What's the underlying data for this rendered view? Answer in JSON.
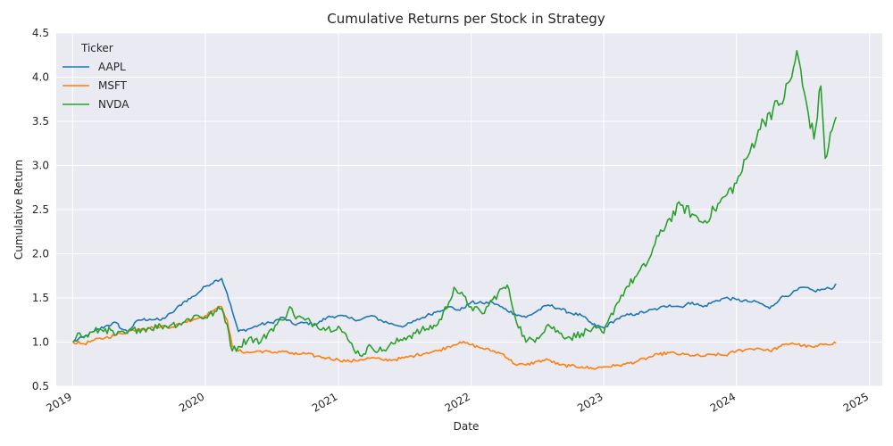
{
  "chart_data": {
    "type": "line",
    "title": "Cumulative Returns per Stock in Strategy",
    "xlabel": "Date",
    "ylabel": "Cumulative Return",
    "ylim": [
      0.5,
      4.5
    ],
    "y_ticks": [
      "0.5",
      "1.0",
      "1.5",
      "2.0",
      "2.5",
      "3.0",
      "3.5",
      "4.0",
      "4.5"
    ],
    "x_ticks": [
      "2019",
      "2020",
      "2021",
      "2022",
      "2023",
      "2024",
      "2025"
    ],
    "xlim": [
      "2018-11-17",
      "2025-02-05"
    ],
    "grid": true,
    "legend": {
      "title": "Ticker",
      "placement": "top-left"
    },
    "series": [
      {
        "name": "AAPL",
        "color": "#1f77b4",
        "points": [
          [
            "2019-01-02",
            1.0
          ],
          [
            "2019-02-01",
            1.06
          ],
          [
            "2019-03-01",
            1.12
          ],
          [
            "2019-04-01",
            1.18
          ],
          [
            "2019-05-01",
            1.22
          ],
          [
            "2019-05-15",
            1.15
          ],
          [
            "2019-06-01",
            1.12
          ],
          [
            "2019-07-01",
            1.25
          ],
          [
            "2019-08-01",
            1.26
          ],
          [
            "2019-09-01",
            1.25
          ],
          [
            "2019-10-01",
            1.33
          ],
          [
            "2019-11-01",
            1.45
          ],
          [
            "2019-12-01",
            1.52
          ],
          [
            "2020-01-01",
            1.63
          ],
          [
            "2020-02-01",
            1.7
          ],
          [
            "2020-02-15",
            1.72
          ],
          [
            "2020-03-01",
            1.55
          ],
          [
            "2020-03-15",
            1.35
          ],
          [
            "2020-04-01",
            1.12
          ],
          [
            "2020-05-01",
            1.15
          ],
          [
            "2020-06-01",
            1.2
          ],
          [
            "2020-07-01",
            1.22
          ],
          [
            "2020-08-01",
            1.28
          ],
          [
            "2020-09-01",
            1.2
          ],
          [
            "2020-10-01",
            1.22
          ],
          [
            "2020-11-01",
            1.2
          ],
          [
            "2020-12-01",
            1.28
          ],
          [
            "2021-01-01",
            1.3
          ],
          [
            "2021-02-01",
            1.27
          ],
          [
            "2021-03-01",
            1.25
          ],
          [
            "2021-04-01",
            1.3
          ],
          [
            "2021-05-01",
            1.24
          ],
          [
            "2021-06-01",
            1.2
          ],
          [
            "2021-07-01",
            1.18
          ],
          [
            "2021-08-01",
            1.24
          ],
          [
            "2021-09-01",
            1.3
          ],
          [
            "2021-10-01",
            1.35
          ],
          [
            "2021-11-01",
            1.4
          ],
          [
            "2021-12-01",
            1.36
          ],
          [
            "2022-01-01",
            1.45
          ],
          [
            "2022-02-01",
            1.44
          ],
          [
            "2022-03-01",
            1.45
          ],
          [
            "2022-04-01",
            1.38
          ],
          [
            "2022-05-01",
            1.32
          ],
          [
            "2022-06-01",
            1.28
          ],
          [
            "2022-07-01",
            1.35
          ],
          [
            "2022-08-01",
            1.42
          ],
          [
            "2022-09-01",
            1.38
          ],
          [
            "2022-10-01",
            1.33
          ],
          [
            "2022-11-01",
            1.3
          ],
          [
            "2022-12-01",
            1.2
          ],
          [
            "2023-01-01",
            1.16
          ],
          [
            "2023-02-01",
            1.25
          ],
          [
            "2023-03-01",
            1.3
          ],
          [
            "2023-04-01",
            1.32
          ],
          [
            "2023-05-01",
            1.35
          ],
          [
            "2023-06-01",
            1.38
          ],
          [
            "2023-07-01",
            1.42
          ],
          [
            "2023-08-01",
            1.4
          ],
          [
            "2023-09-01",
            1.45
          ],
          [
            "2023-10-01",
            1.4
          ],
          [
            "2023-11-01",
            1.46
          ],
          [
            "2023-12-01",
            1.5
          ],
          [
            "2024-01-01",
            1.48
          ],
          [
            "2024-02-01",
            1.46
          ],
          [
            "2024-03-01",
            1.45
          ],
          [
            "2024-04-01",
            1.38
          ],
          [
            "2024-05-01",
            1.5
          ],
          [
            "2024-06-01",
            1.55
          ],
          [
            "2024-07-01",
            1.62
          ],
          [
            "2024-08-01",
            1.58
          ],
          [
            "2024-09-01",
            1.6
          ],
          [
            "2024-09-25",
            1.62
          ],
          [
            "2024-10-01",
            1.66
          ]
        ]
      },
      {
        "name": "MSFT",
        "color": "#ff7f0e",
        "points": [
          [
            "2019-01-02",
            1.0
          ],
          [
            "2019-02-01",
            0.98
          ],
          [
            "2019-03-01",
            1.02
          ],
          [
            "2019-04-01",
            1.05
          ],
          [
            "2019-05-01",
            1.08
          ],
          [
            "2019-06-01",
            1.12
          ],
          [
            "2019-07-01",
            1.15
          ],
          [
            "2019-08-01",
            1.16
          ],
          [
            "2019-09-01",
            1.18
          ],
          [
            "2019-10-01",
            1.17
          ],
          [
            "2019-11-01",
            1.22
          ],
          [
            "2019-12-01",
            1.26
          ],
          [
            "2020-01-01",
            1.3
          ],
          [
            "2020-01-20",
            1.35
          ],
          [
            "2020-02-01",
            1.38
          ],
          [
            "2020-02-15",
            1.4
          ],
          [
            "2020-03-01",
            1.25
          ],
          [
            "2020-03-15",
            0.95
          ],
          [
            "2020-04-01",
            0.9
          ],
          [
            "2020-05-01",
            0.88
          ],
          [
            "2020-06-01",
            0.9
          ],
          [
            "2020-07-01",
            0.88
          ],
          [
            "2020-08-01",
            0.9
          ],
          [
            "2020-09-01",
            0.86
          ],
          [
            "2020-10-01",
            0.87
          ],
          [
            "2020-11-01",
            0.84
          ],
          [
            "2020-12-01",
            0.82
          ],
          [
            "2021-01-01",
            0.8
          ],
          [
            "2021-02-01",
            0.78
          ],
          [
            "2021-03-01",
            0.8
          ],
          [
            "2021-04-01",
            0.82
          ],
          [
            "2021-05-01",
            0.8
          ],
          [
            "2021-06-01",
            0.8
          ],
          [
            "2021-07-01",
            0.82
          ],
          [
            "2021-08-01",
            0.85
          ],
          [
            "2021-09-01",
            0.88
          ],
          [
            "2021-10-01",
            0.9
          ],
          [
            "2021-11-01",
            0.95
          ],
          [
            "2021-12-01",
            1.0
          ],
          [
            "2022-01-01",
            0.97
          ],
          [
            "2022-02-01",
            0.93
          ],
          [
            "2022-03-01",
            0.9
          ],
          [
            "2022-04-01",
            0.86
          ],
          [
            "2022-05-01",
            0.75
          ],
          [
            "2022-06-01",
            0.74
          ],
          [
            "2022-07-01",
            0.78
          ],
          [
            "2022-08-01",
            0.8
          ],
          [
            "2022-09-01",
            0.74
          ],
          [
            "2022-10-01",
            0.73
          ],
          [
            "2022-11-01",
            0.72
          ],
          [
            "2022-12-01",
            0.7
          ],
          [
            "2023-01-01",
            0.72
          ],
          [
            "2023-02-01",
            0.73
          ],
          [
            "2023-03-01",
            0.75
          ],
          [
            "2023-04-01",
            0.78
          ],
          [
            "2023-05-01",
            0.82
          ],
          [
            "2023-06-01",
            0.86
          ],
          [
            "2023-07-01",
            0.88
          ],
          [
            "2023-08-01",
            0.86
          ],
          [
            "2023-09-01",
            0.85
          ],
          [
            "2023-10-01",
            0.84
          ],
          [
            "2023-11-01",
            0.86
          ],
          [
            "2023-12-01",
            0.85
          ],
          [
            "2024-01-01",
            0.9
          ],
          [
            "2024-02-01",
            0.92
          ],
          [
            "2024-03-01",
            0.93
          ],
          [
            "2024-04-01",
            0.9
          ],
          [
            "2024-05-01",
            0.95
          ],
          [
            "2024-06-01",
            0.99
          ],
          [
            "2024-07-01",
            0.96
          ],
          [
            "2024-08-01",
            0.94
          ],
          [
            "2024-09-01",
            0.98
          ],
          [
            "2024-10-01",
            0.99
          ]
        ]
      },
      {
        "name": "NVDA",
        "color": "#2ca02c",
        "points": [
          [
            "2019-01-02",
            1.0
          ],
          [
            "2019-01-15",
            1.1
          ],
          [
            "2019-02-01",
            1.05
          ],
          [
            "2019-03-01",
            1.12
          ],
          [
            "2019-04-01",
            1.15
          ],
          [
            "2019-05-01",
            1.08
          ],
          [
            "2019-06-01",
            1.1
          ],
          [
            "2019-07-01",
            1.15
          ],
          [
            "2019-08-01",
            1.16
          ],
          [
            "2019-09-01",
            1.18
          ],
          [
            "2019-10-01",
            1.2
          ],
          [
            "2019-11-01",
            1.22
          ],
          [
            "2019-12-01",
            1.3
          ],
          [
            "2020-01-01",
            1.28
          ],
          [
            "2020-02-01",
            1.35
          ],
          [
            "2020-02-15",
            1.38
          ],
          [
            "2020-03-01",
            1.2
          ],
          [
            "2020-03-15",
            0.9
          ],
          [
            "2020-04-01",
            0.95
          ],
          [
            "2020-05-01",
            1.05
          ],
          [
            "2020-06-01",
            1.0
          ],
          [
            "2020-07-01",
            1.15
          ],
          [
            "2020-08-01",
            1.25
          ],
          [
            "2020-08-20",
            1.4
          ],
          [
            "2020-09-01",
            1.3
          ],
          [
            "2020-10-01",
            1.25
          ],
          [
            "2020-11-01",
            1.2
          ],
          [
            "2020-12-01",
            1.15
          ],
          [
            "2021-01-01",
            1.18
          ],
          [
            "2021-02-01",
            1.0
          ],
          [
            "2021-03-01",
            0.85
          ],
          [
            "2021-04-01",
            0.95
          ],
          [
            "2021-05-01",
            0.9
          ],
          [
            "2021-06-01",
            0.98
          ],
          [
            "2021-07-01",
            1.05
          ],
          [
            "2021-08-01",
            1.1
          ],
          [
            "2021-09-01",
            1.15
          ],
          [
            "2021-10-01",
            1.2
          ],
          [
            "2021-11-01",
            1.45
          ],
          [
            "2021-11-15",
            1.62
          ],
          [
            "2021-12-01",
            1.55
          ],
          [
            "2022-01-01",
            1.4
          ],
          [
            "2022-02-01",
            1.32
          ],
          [
            "2022-03-01",
            1.48
          ],
          [
            "2022-04-01",
            1.62
          ],
          [
            "2022-04-15",
            1.6
          ],
          [
            "2022-05-01",
            1.3
          ],
          [
            "2022-06-01",
            1.0
          ],
          [
            "2022-07-01",
            1.05
          ],
          [
            "2022-08-01",
            1.2
          ],
          [
            "2022-09-01",
            1.1
          ],
          [
            "2022-10-01",
            1.05
          ],
          [
            "2022-11-01",
            1.1
          ],
          [
            "2022-12-01",
            1.15
          ],
          [
            "2023-01-01",
            1.1
          ],
          [
            "2023-02-01",
            1.4
          ],
          [
            "2023-03-01",
            1.6
          ],
          [
            "2023-04-01",
            1.75
          ],
          [
            "2023-05-01",
            1.9
          ],
          [
            "2023-06-01",
            2.2
          ],
          [
            "2023-07-01",
            2.4
          ],
          [
            "2023-08-01",
            2.55
          ],
          [
            "2023-09-01",
            2.45
          ],
          [
            "2023-10-01",
            2.35
          ],
          [
            "2023-11-01",
            2.5
          ],
          [
            "2023-12-01",
            2.65
          ],
          [
            "2024-01-01",
            2.8
          ],
          [
            "2024-02-01",
            3.1
          ],
          [
            "2024-03-01",
            3.4
          ],
          [
            "2024-04-01",
            3.6
          ],
          [
            "2024-05-01",
            3.7
          ],
          [
            "2024-06-01",
            4.0
          ],
          [
            "2024-06-15",
            4.3
          ],
          [
            "2024-07-01",
            3.9
          ],
          [
            "2024-08-01",
            3.3
          ],
          [
            "2024-08-20",
            3.9
          ],
          [
            "2024-09-01",
            3.08
          ],
          [
            "2024-09-20",
            3.4
          ],
          [
            "2024-10-01",
            3.55
          ]
        ]
      }
    ]
  }
}
